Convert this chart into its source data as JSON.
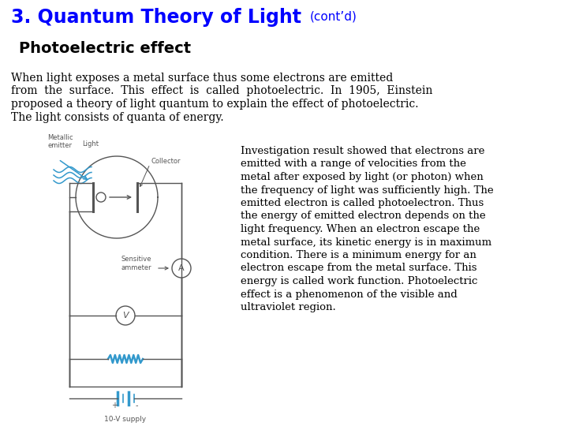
{
  "title_main": "3. Quantum Theory of Light",
  "title_cont": "(cont’d)",
  "subtitle": "Photoelectric effect",
  "paragraph1_lines": [
    "When light exposes a metal surface thus some electrons are emitted",
    "from  the  surface.  This  effect  is  called  photoelectric.  In  1905,  Einstein",
    "proposed a theory of light quantum to explain the effect of photoelectric.",
    "The light consists of quanta of energy."
  ],
  "paragraph2_lines": [
    "Investigation result showed that electrons are",
    "emitted with a range of velocities from the",
    "metal after exposed by light (or photon) when",
    "the frequency of light was sufficiently high. The",
    "emitted electron is called photoelectron. Thus",
    "the energy of emitted electron depends on the",
    "light frequency. When an electron escape the",
    "metal surface, its kinetic energy is in maximum",
    "condition. There is a minimum energy for an",
    "electron escape from the metal surface. This",
    "energy is called work function. Photoelectric",
    "effect is a phenomenon of the visible and",
    "ultraviolet region."
  ],
  "bg_color": "#ffffff",
  "title_color": "#0000FF",
  "subtitle_color": "#000000",
  "text_color": "#000000",
  "circuit_color": "#555555",
  "light_color": "#3399CC",
  "circuit_label_metallic": "Metallic\nemitter",
  "circuit_label_light": "Light",
  "circuit_label_collector": "Collector",
  "circuit_label_ammeter": "Sensitive\nammeter",
  "circuit_label_voltage": "10-V supply",
  "title_fontsize": 17,
  "title_cont_fontsize": 11,
  "subtitle_fontsize": 14,
  "p1_fontsize": 10,
  "p2_fontsize": 9.5
}
